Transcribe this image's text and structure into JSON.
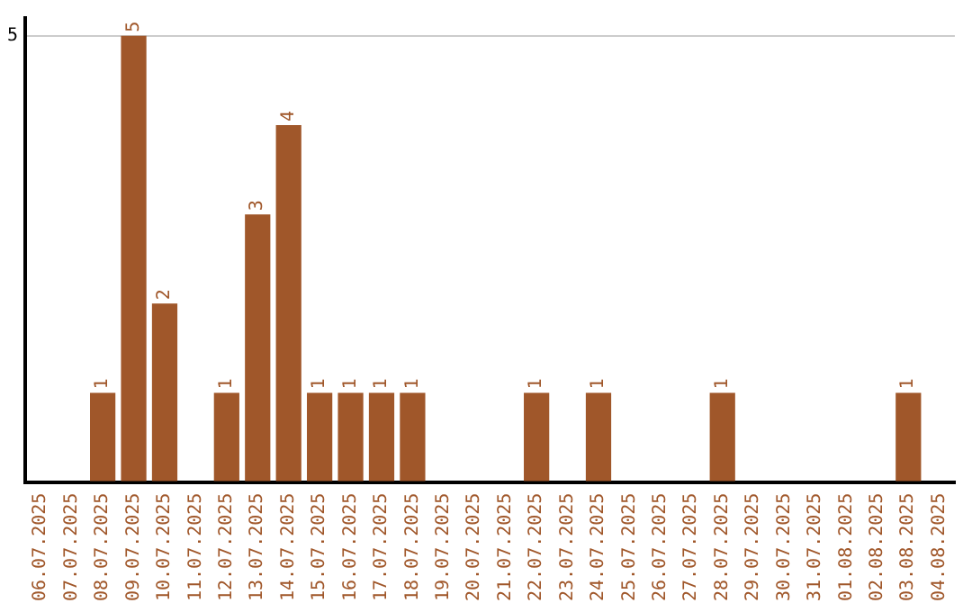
{
  "chart_data": {
    "type": "bar",
    "categories": [
      "06.07.2025",
      "07.07.2025",
      "08.07.2025",
      "09.07.2025",
      "10.07.2025",
      "11.07.2025",
      "12.07.2025",
      "13.07.2025",
      "14.07.2025",
      "15.07.2025",
      "16.07.2025",
      "17.07.2025",
      "18.07.2025",
      "19.07.2025",
      "20.07.2025",
      "21.07.2025",
      "22.07.2025",
      "23.07.2025",
      "24.07.2025",
      "25.07.2025",
      "26.07.2025",
      "27.07.2025",
      "28.07.2025",
      "29.07.2025",
      "30.07.2025",
      "31.07.2025",
      "01.08.2025",
      "02.08.2025",
      "03.08.2025",
      "04.08.2025"
    ],
    "values": [
      null,
      null,
      1,
      5,
      2,
      null,
      1,
      3,
      4,
      1,
      1,
      1,
      1,
      null,
      null,
      null,
      1,
      null,
      1,
      null,
      null,
      null,
      1,
      null,
      null,
      null,
      null,
      null,
      1,
      null
    ],
    "value_labels": [
      null,
      null,
      "1",
      "5",
      "2",
      null,
      "1",
      "3",
      "4",
      "1",
      "1",
      "1",
      "1",
      null,
      null,
      null,
      "1",
      null,
      "1",
      null,
      null,
      null,
      "1",
      null,
      null,
      null,
      null,
      null,
      "1",
      null
    ],
    "color": "#a0572a",
    "ylim": [
      0,
      5.2
    ],
    "yticks": [
      {
        "value": 0,
        "label": null
      },
      5
    ],
    "grid": "y",
    "legend": false
  }
}
